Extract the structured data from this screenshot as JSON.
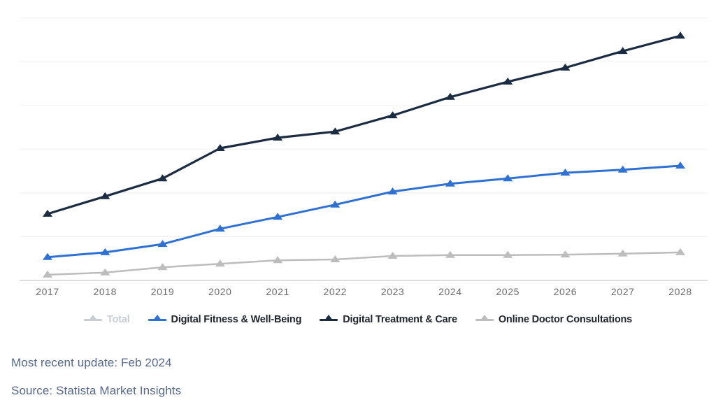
{
  "chart_data": {
    "type": "line",
    "title": "",
    "xlabel": "",
    "ylabel": "",
    "x": [
      "2017",
      "2018",
      "2019",
      "2020",
      "2021",
      "2022",
      "2023",
      "2024",
      "2025",
      "2026",
      "2027",
      "2028"
    ],
    "series": [
      {
        "name": "Total",
        "color": "#c9cdd2",
        "disabled": true,
        "stroke_width": 3,
        "values": null
      },
      {
        "name": "Digital Fitness & Well-Being",
        "color": "#2e71d2",
        "disabled": false,
        "stroke_width": 3,
        "values": [
          0.53,
          0.64,
          0.83,
          1.18,
          1.45,
          1.73,
          2.03,
          2.21,
          2.33,
          2.46,
          2.53,
          2.62
        ]
      },
      {
        "name": "Digital Treatment & Care",
        "color": "#1b2c42",
        "disabled": false,
        "stroke_width": 3.2,
        "values": [
          1.52,
          1.92,
          2.33,
          3.02,
          3.26,
          3.4,
          3.77,
          4.19,
          4.54,
          4.86,
          5.24,
          5.59
        ]
      },
      {
        "name": "Online Doctor Consultations",
        "color": "#bdbdbd",
        "disabled": false,
        "stroke_width": 2.5,
        "values": [
          0.13,
          0.18,
          0.3,
          0.38,
          0.46,
          0.48,
          0.56,
          0.58,
          0.58,
          0.59,
          0.61,
          0.64
        ]
      }
    ],
    "value_units": "y-axis unlabeled; values estimated in gridline units (1 unit = one gridline interval)",
    "ylim": [
      0,
      6.4
    ],
    "gridline_step": 1,
    "gridlines_visible": 6,
    "y_tick_labels_visible": false,
    "legend_position": "bottom",
    "marker": "triangle-up",
    "grid_color": "#efefef",
    "axis_color": "#cbcbcb",
    "tick_label_color": "#6b6b6b",
    "legend_text_color": "#22262c"
  },
  "footer": {
    "updated": "Most recent update: Feb 2024",
    "source": "Source: Statista Market Insights",
    "text_color": "#56688b"
  }
}
